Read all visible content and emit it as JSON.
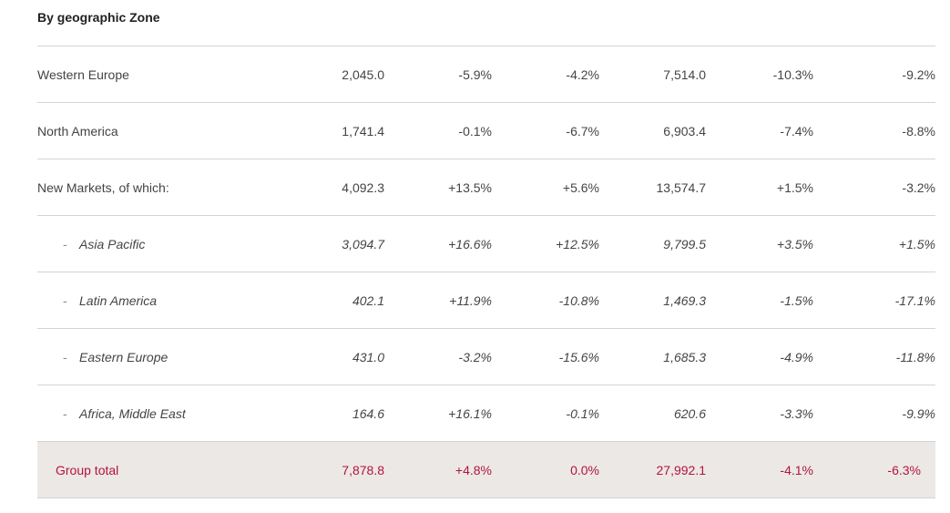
{
  "title": "By geographic Zone",
  "rows": [
    {
      "label": "Western Europe",
      "sub": false,
      "values": [
        "2,045.0",
        "-5.9%",
        "-4.2%",
        "7,514.0",
        "-10.3%",
        "-9.2%"
      ]
    },
    {
      "label": "North America",
      "sub": false,
      "values": [
        "1,741.4",
        "-0.1%",
        "-6.7%",
        "6,903.4",
        "-7.4%",
        "-8.8%"
      ]
    },
    {
      "label": "New Markets, of which:",
      "sub": false,
      "values": [
        "4,092.3",
        "+13.5%",
        "+5.6%",
        "13,574.7",
        "+1.5%",
        "-3.2%"
      ]
    },
    {
      "label": "Asia Pacific",
      "sub": true,
      "values": [
        "3,094.7",
        "+16.6%",
        "+12.5%",
        "9,799.5",
        "+3.5%",
        "+1.5%"
      ]
    },
    {
      "label": "Latin America",
      "sub": true,
      "values": [
        "402.1",
        "+11.9%",
        "-10.8%",
        "1,469.3",
        "-1.5%",
        "-17.1%"
      ]
    },
    {
      "label": "Eastern Europe",
      "sub": true,
      "values": [
        "431.0",
        "-3.2%",
        "-15.6%",
        "1,685.3",
        "-4.9%",
        "-11.8%"
      ]
    },
    {
      "label": "Africa, Middle East",
      "sub": true,
      "values": [
        "164.6",
        "+16.1%",
        "-0.1%",
        "620.6",
        "-3.3%",
        "-9.9%"
      ]
    }
  ],
  "sub_marker": "-",
  "total": {
    "label": "Group total",
    "values": [
      "7,878.8",
      "+4.8%",
      "0.0%",
      "27,992.1",
      "-4.1%",
      "-6.3%"
    ]
  },
  "colors": {
    "total_text": "#b3143c",
    "total_background": "#ece8e5",
    "rule": "#d4d4d4"
  }
}
